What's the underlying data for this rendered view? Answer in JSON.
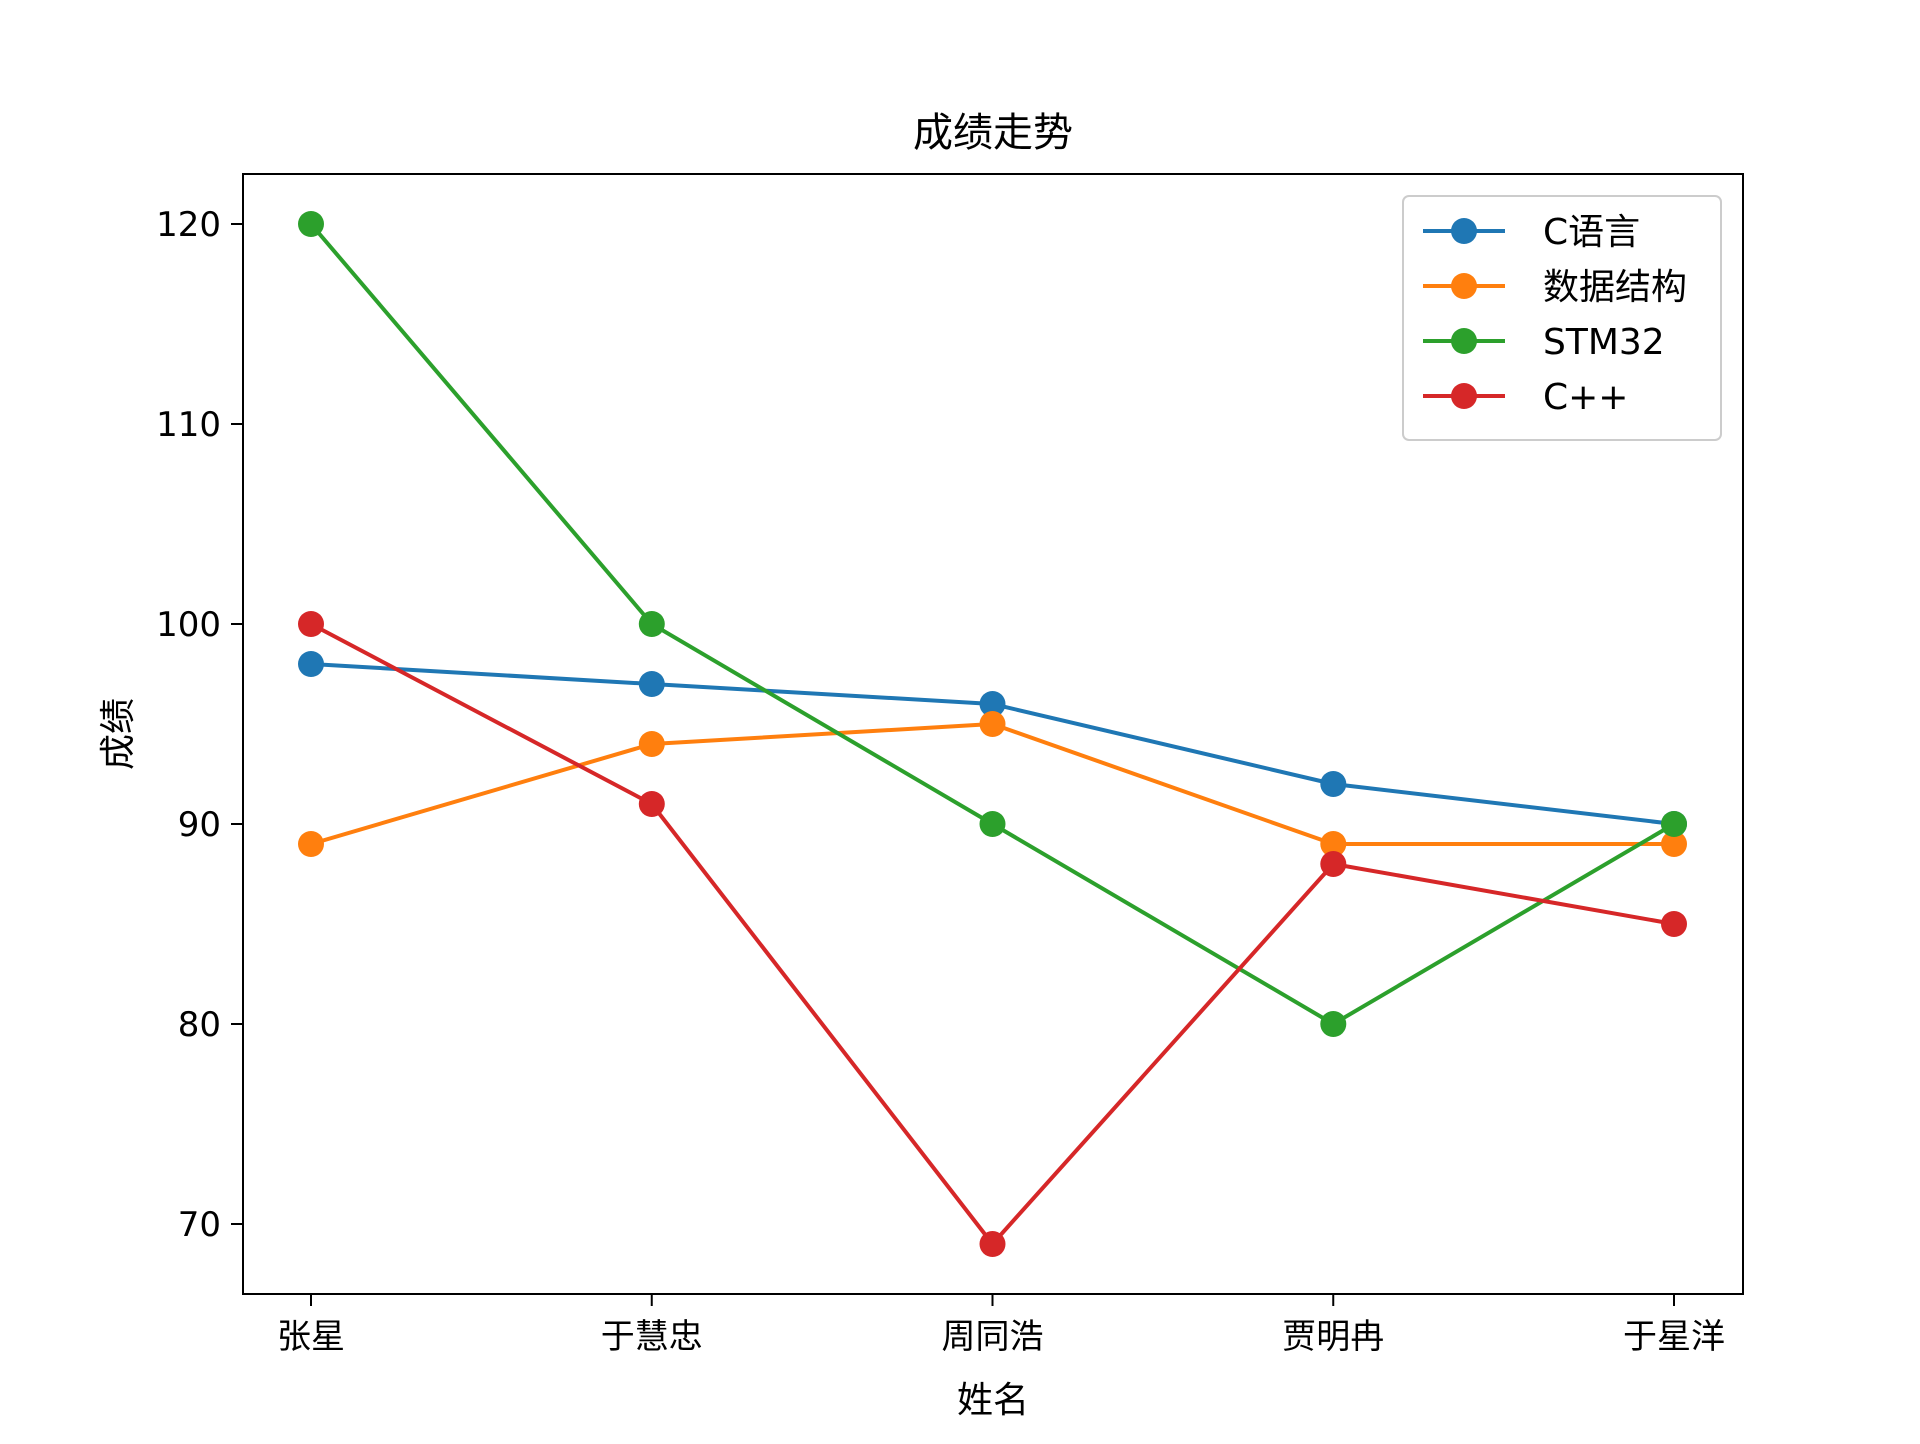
{
  "chart_data": {
    "type": "line",
    "title": "成绩走势",
    "xlabel": "姓名",
    "ylabel": "成绩",
    "categories": [
      "张星",
      "于慧忠",
      "周同浩",
      "贾明冉",
      "于星洋"
    ],
    "ylim": [
      66.5,
      122.5
    ],
    "yticks": [
      70,
      80,
      90,
      100,
      110,
      120
    ],
    "grid": false,
    "legend_position": "top-right",
    "series": [
      {
        "name": "C语言",
        "color": "#1f77b4",
        "values": [
          98,
          97,
          96,
          92,
          90
        ]
      },
      {
        "name": "数据结构",
        "color": "#ff7f0e",
        "values": [
          89,
          94,
          95,
          89,
          89
        ]
      },
      {
        "name": "STM32",
        "color": "#2ca02c",
        "values": [
          120,
          100,
          90,
          80,
          90
        ]
      },
      {
        "name": "C++",
        "color": "#d62728",
        "values": [
          100,
          91,
          69,
          88,
          85
        ]
      }
    ]
  }
}
